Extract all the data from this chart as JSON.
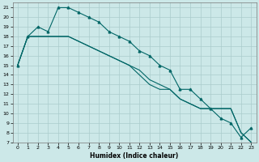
{
  "xlabel": "Humidex (Indice chaleur)",
  "bg_color": "#cce8e8",
  "grid_color": "#aacccc",
  "line_color": "#006666",
  "xlim": [
    -0.5,
    23.5
  ],
  "ylim": [
    7,
    21.5
  ],
  "xticks": [
    0,
    1,
    2,
    3,
    4,
    5,
    6,
    7,
    8,
    9,
    10,
    11,
    12,
    13,
    14,
    15,
    16,
    17,
    18,
    19,
    20,
    21,
    22,
    23
  ],
  "yticks": [
    7,
    8,
    9,
    10,
    11,
    12,
    13,
    14,
    15,
    16,
    17,
    18,
    19,
    20,
    21
  ],
  "line1_x": [
    0,
    1,
    2,
    3,
    4,
    5,
    6,
    7,
    8,
    9,
    10,
    11,
    12,
    13,
    14,
    15,
    16,
    17,
    18,
    19,
    20,
    21,
    22,
    23
  ],
  "line1_y": [
    15,
    18,
    19,
    18.5,
    21,
    21,
    20.5,
    20,
    19.5,
    18.5,
    18,
    17.5,
    16.5,
    16,
    15,
    14.5,
    12.5,
    12.5,
    11.5,
    10.5,
    9.5,
    9,
    7.5,
    8.5
  ],
  "line2_x": [
    0,
    1,
    2,
    3,
    4,
    5,
    6,
    7,
    8,
    9,
    10,
    11,
    12,
    13,
    14,
    15,
    16,
    17,
    18,
    19,
    20,
    21,
    22,
    23
  ],
  "line2_y": [
    15,
    18,
    18,
    18,
    18,
    18,
    17.5,
    17,
    16.5,
    16,
    15.5,
    15,
    14.5,
    13.5,
    13,
    12.5,
    11.5,
    11,
    10.5,
    10.5,
    10.5,
    10.5,
    8,
    7
  ],
  "line3_x": [
    0,
    1,
    2,
    3,
    4,
    5,
    6,
    7,
    8,
    9,
    10,
    11,
    12,
    13,
    14,
    15,
    16,
    17,
    18,
    19,
    20,
    21,
    22,
    23
  ],
  "line3_y": [
    15,
    18,
    18,
    18,
    18,
    18,
    17.5,
    17,
    16.5,
    16,
    15.5,
    15,
    14,
    13,
    12.5,
    12.5,
    11.5,
    11,
    10.5,
    10.5,
    10.5,
    10.5,
    8,
    7
  ]
}
